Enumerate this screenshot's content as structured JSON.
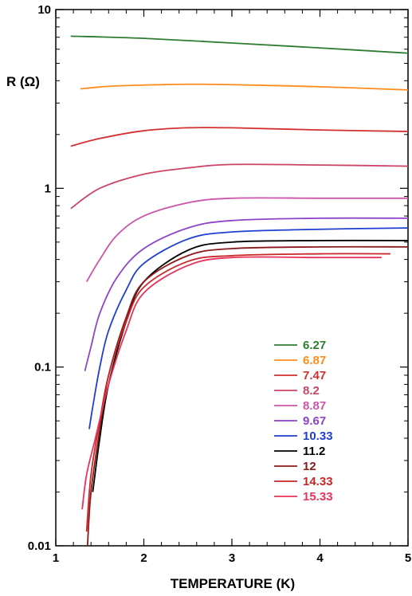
{
  "chart_data": {
    "type": "line",
    "title": "",
    "xlabel": "TEMPERATURE (K)",
    "ylabel": "R (Ω)",
    "x_scale": "linear",
    "y_scale": "log",
    "xlim": [
      1,
      5
    ],
    "ylim": [
      0.01,
      10
    ],
    "x_ticks": [
      1,
      2,
      3,
      4,
      5
    ],
    "x_tick_labels": [
      "1",
      "2",
      "3",
      "4",
      "5"
    ],
    "y_ticks": [
      0.01,
      0.1,
      1,
      10
    ],
    "y_tick_labels": [
      "0.01",
      "0.1",
      "1",
      "10"
    ],
    "grid": false,
    "legend_position": "bottom-right",
    "series": [
      {
        "name": "6.27",
        "color": "#2e7d32",
        "points": [
          [
            1.17,
            7.1
          ],
          [
            2,
            6.9
          ],
          [
            3,
            6.5
          ],
          [
            4,
            6.1
          ],
          [
            5,
            5.7
          ]
        ]
      },
      {
        "name": "6.87",
        "color": "#ff8c1a",
        "points": [
          [
            1.28,
            3.6
          ],
          [
            1.6,
            3.72
          ],
          [
            2,
            3.78
          ],
          [
            2.5,
            3.82
          ],
          [
            3,
            3.8
          ],
          [
            4,
            3.7
          ],
          [
            5,
            3.55
          ]
        ]
      },
      {
        "name": "7.47",
        "color": "#d32f2f",
        "points": [
          [
            1.17,
            1.72
          ],
          [
            1.5,
            1.9
          ],
          [
            2,
            2.1
          ],
          [
            2.5,
            2.18
          ],
          [
            3,
            2.18
          ],
          [
            4,
            2.12
          ],
          [
            5,
            2.08
          ]
        ]
      },
      {
        "name": "8.2",
        "color": "#cc4466",
        "points": [
          [
            1.17,
            0.77
          ],
          [
            1.5,
            1.0
          ],
          [
            2,
            1.2
          ],
          [
            2.5,
            1.3
          ],
          [
            3,
            1.36
          ],
          [
            4,
            1.35
          ],
          [
            5,
            1.33
          ]
        ]
      },
      {
        "name": "8.87",
        "color": "#cc55aa",
        "points": [
          [
            1.35,
            0.3
          ],
          [
            1.5,
            0.4
          ],
          [
            1.7,
            0.55
          ],
          [
            2,
            0.7
          ],
          [
            2.5,
            0.83
          ],
          [
            3,
            0.88
          ],
          [
            4,
            0.88
          ],
          [
            5,
            0.88
          ]
        ]
      },
      {
        "name": "9.67",
        "color": "#8e44c8",
        "points": [
          [
            1.33,
            0.095
          ],
          [
            1.4,
            0.13
          ],
          [
            1.5,
            0.2
          ],
          [
            1.7,
            0.32
          ],
          [
            2,
            0.46
          ],
          [
            2.5,
            0.6
          ],
          [
            3,
            0.66
          ],
          [
            4,
            0.68
          ],
          [
            5,
            0.68
          ]
        ]
      },
      {
        "name": "10.33",
        "color": "#1f3fd0",
        "points": [
          [
            1.38,
            0.045
          ],
          [
            1.42,
            0.06
          ],
          [
            1.5,
            0.1
          ],
          [
            1.6,
            0.16
          ],
          [
            1.8,
            0.27
          ],
          [
            2,
            0.38
          ],
          [
            2.5,
            0.52
          ],
          [
            3,
            0.57
          ],
          [
            4,
            0.59
          ],
          [
            5,
            0.6
          ]
        ]
      },
      {
        "name": "11.2",
        "color": "#000000",
        "points": [
          [
            1.42,
            0.02
          ],
          [
            1.5,
            0.04
          ],
          [
            1.6,
            0.08
          ],
          [
            1.8,
            0.18
          ],
          [
            2,
            0.3
          ],
          [
            2.5,
            0.45
          ],
          [
            3,
            0.5
          ],
          [
            4,
            0.51
          ],
          [
            5,
            0.51
          ]
        ]
      },
      {
        "name": "12",
        "color": "#8b1a1a",
        "points": [
          [
            1.36,
            0.01
          ],
          [
            1.4,
            0.02
          ],
          [
            1.5,
            0.045
          ],
          [
            1.6,
            0.09
          ],
          [
            1.8,
            0.19
          ],
          [
            2,
            0.3
          ],
          [
            2.5,
            0.42
          ],
          [
            3,
            0.46
          ],
          [
            4,
            0.47
          ],
          [
            5,
            0.47
          ]
        ]
      },
      {
        "name": "14.33",
        "color": "#c62828",
        "points": [
          [
            1.35,
            0.012
          ],
          [
            1.4,
            0.025
          ],
          [
            1.5,
            0.05
          ],
          [
            1.6,
            0.09
          ],
          [
            1.8,
            0.18
          ],
          [
            2,
            0.28
          ],
          [
            2.5,
            0.39
          ],
          [
            3,
            0.42
          ],
          [
            4,
            0.43
          ],
          [
            4.8,
            0.43
          ]
        ]
      },
      {
        "name": "15.33",
        "color": "#e8335a",
        "points": [
          [
            1.3,
            0.016
          ],
          [
            1.35,
            0.025
          ],
          [
            1.45,
            0.04
          ],
          [
            1.6,
            0.08
          ],
          [
            1.8,
            0.16
          ],
          [
            2,
            0.26
          ],
          [
            2.5,
            0.37
          ],
          [
            3,
            0.41
          ],
          [
            4,
            0.41
          ],
          [
            4.7,
            0.41
          ]
        ]
      }
    ]
  }
}
